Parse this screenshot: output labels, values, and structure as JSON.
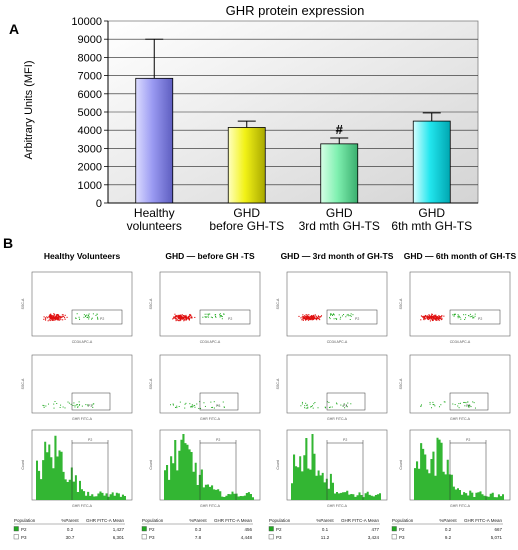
{
  "panel_a_letter": "A",
  "panel_b_letter": "B",
  "chart_data": {
    "type": "bar",
    "title": "GHR protein expression",
    "xlabel": "",
    "ylabel": "Arbitrary Units (MFI)",
    "ylim": [
      0,
      10000
    ],
    "ytick_step": 1000,
    "yticks": [
      "0",
      "1000",
      "2000",
      "3000",
      "4000",
      "5000",
      "6000",
      "7000",
      "8000",
      "9000",
      "10000"
    ],
    "grid": true,
    "categories": [
      [
        "Healthy",
        "volunteers"
      ],
      [
        "GHD",
        "before GH-TS"
      ],
      [
        "GHD",
        "3rd mth GH-TS"
      ],
      [
        "GHD",
        "6th mth GH-TS"
      ]
    ],
    "values": [
      6850,
      4150,
      3250,
      4500
    ],
    "errors": [
      2150,
      350,
      320,
      450
    ],
    "annotations": [
      "",
      "",
      "#",
      ""
    ],
    "colors": [
      {
        "light": "#dcdcff",
        "main": "#9a9af2",
        "dark": "#5e5ec0"
      },
      {
        "light": "#ffffc0",
        "main": "#f2f216",
        "dark": "#a8a800"
      },
      {
        "light": "#d6ffe6",
        "main": "#7ff0b0",
        "dark": "#3aae6e"
      },
      {
        "light": "#d6ffff",
        "main": "#22e6ee",
        "dark": "#00a6b0"
      }
    ]
  },
  "flow_panels": {
    "column_titles": [
      "Healthy Volunteers",
      "GHD — before GH -TS",
      "GHD — 3rd month of GH-TS",
      "GHD — 6th month of GH-TS"
    ],
    "row1_xlabel": "CD34 APC-A",
    "row1_ylabel": "SSC-A",
    "row2_xlabel": "GHR FITC-A",
    "row2_ylabel": "SSC-A",
    "row3_xlabel": "GHR FITC-A",
    "row3_ylabel": "Count",
    "gate_row1": "P2",
    "gate_row2": "P3",
    "gate_row3": "P2",
    "table_headers": [
      "Population",
      "%Parent",
      "GHR FITC-A Mean"
    ],
    "tables": [
      [
        [
          "P2",
          "0.2",
          "1,427"
        ],
        [
          "P3",
          "30.7",
          "6,301"
        ]
      ],
      [
        [
          "P2",
          "0.3",
          "456"
        ],
        [
          "P3",
          "7.8",
          "4,448"
        ]
      ],
      [
        [
          "P2",
          "0.1",
          "477"
        ],
        [
          "P3",
          "11.2",
          "3,424"
        ]
      ],
      [
        [
          "P2",
          "0.2",
          "667"
        ],
        [
          "P3",
          "9.2",
          "5,071"
        ]
      ]
    ],
    "colors": {
      "dots_red": "#e01010",
      "dots_green": "#22aa22",
      "hist": "#33b633"
    }
  }
}
